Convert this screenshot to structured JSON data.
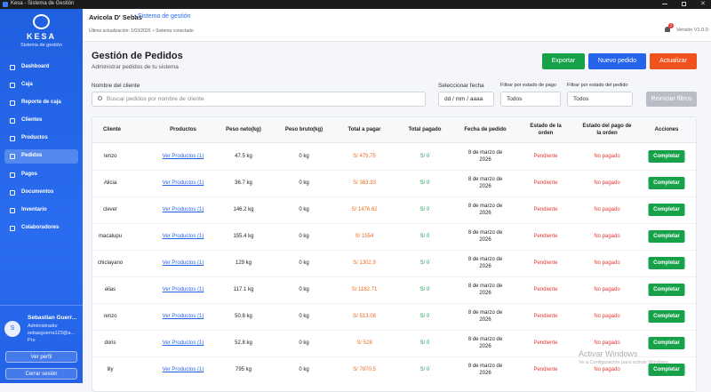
{
  "window": {
    "title": "Kesa - Sistema de Gestión"
  },
  "sidebar": {
    "logo": "KESA",
    "tagline": "Sistema de gestión",
    "nav": [
      "Dashboard",
      "Caja",
      "Reporte de caja",
      "Clientes",
      "Productos",
      "Pedidos",
      "Pagos",
      "Documentos",
      "Inventario",
      "Colaboradores"
    ],
    "active": 5,
    "user": {
      "initial": "S",
      "name": "Sebastian Guerr...",
      "role": "Administrador",
      "email": "sebasguerra123@a...",
      "plan": "Pro"
    },
    "buttons": [
      "Ver perfil",
      "Cerrar sesión"
    ]
  },
  "topbar": {
    "company": "Avicola D' Sebas",
    "separator": "•",
    "system": "Sistema de gestión",
    "updated": "Última actualización: 1/03/2026",
    "status": "• Sistema conectado",
    "notifications": "1",
    "version": "Versión V1.0.0"
  },
  "page": {
    "title": "Gestión de Pedidos",
    "subtitle": "Administrar pedidos de tu sistema",
    "actions": [
      "Exportar",
      "Nuevo pedido",
      "Actualizar"
    ],
    "filters": {
      "client_label": "Nombre del cliente",
      "client_placeholder": "Buscar pedidos por nombre de cliente",
      "date_label": "Seleccionar fecha",
      "date_placeholder": "dd / mm / aaaa",
      "pay_label": "Filtrar por estado de pago",
      "pay_value": "Todos",
      "order_label": "Filtrar por estado del pedido",
      "order_value": "Todos",
      "reset": "Reiniciar filtros"
    }
  },
  "table": {
    "headers": [
      "Cliente",
      "Productos",
      "Peso neto(kg)",
      "Peso bruto(kg)",
      "Total a pagar",
      "Total pagado",
      "Fecha de pedido",
      "Estado de la orden",
      "Estado del pago de la orden",
      "Acciones"
    ],
    "rows": [
      [
        "renzo",
        "Ver Productos (1)",
        "47.5 kg",
        "0 kg",
        "S/ 479.75",
        "S/ 0",
        "8 de marzo de 2026",
        "Pendiente",
        "No pagado",
        "Completar"
      ],
      [
        "Alicia",
        "Ver Productos (1)",
        "36.7 kg",
        "0 kg",
        "S/ 363.33",
        "S/ 0",
        "8 de marzo de 2026",
        "Pendiente",
        "No pagado",
        "Completar"
      ],
      [
        "clever",
        "Ver Productos (1)",
        "146.2 kg",
        "0 kg",
        "S/ 1476.62",
        "S/ 0",
        "8 de marzo de 2026",
        "Pendiente",
        "No pagado",
        "Completar"
      ],
      [
        "macalupu",
        "Ver Productos (1)",
        "155.4 kg",
        "0 kg",
        "S/ 1554",
        "S/ 0",
        "8 de marzo de 2026",
        "Pendiente",
        "No pagado",
        "Completar"
      ],
      [
        "chiclayano",
        "Ver Productos (1)",
        "129 kg",
        "0 kg",
        "S/ 1302.9",
        "S/ 0",
        "8 de marzo de 2026",
        "Pendiente",
        "No pagado",
        "Completar"
      ],
      [
        "elias",
        "Ver Productos (1)",
        "117.1 kg",
        "0 kg",
        "S/ 1182.71",
        "S/ 0",
        "8 de marzo de 2026",
        "Pendiente",
        "No pagado",
        "Completar"
      ],
      [
        "renzo",
        "Ver Productos (1)",
        "50.8 kg",
        "0 kg",
        "S/ 513.08",
        "S/ 0",
        "8 de marzo de 2026",
        "Pendiente",
        "No pagado",
        "Completar"
      ],
      [
        "doris",
        "Ver Productos (1)",
        "52.8 kg",
        "0 kg",
        "S/ 528",
        "S/ 0",
        "8 de marzo de 2026",
        "Pendiente",
        "No pagado",
        "Completar"
      ],
      [
        "lily",
        "Ver Productos (1)",
        "795 kg",
        "0 kg",
        "S/ 7870.5",
        "S/ 0",
        "8 de marzo de 2026",
        "Pendiente",
        "No pagado",
        "Completar"
      ]
    ]
  },
  "watermark": {
    "title": "Activar Windows",
    "text": "Ve a Configuración para activar Windows."
  }
}
